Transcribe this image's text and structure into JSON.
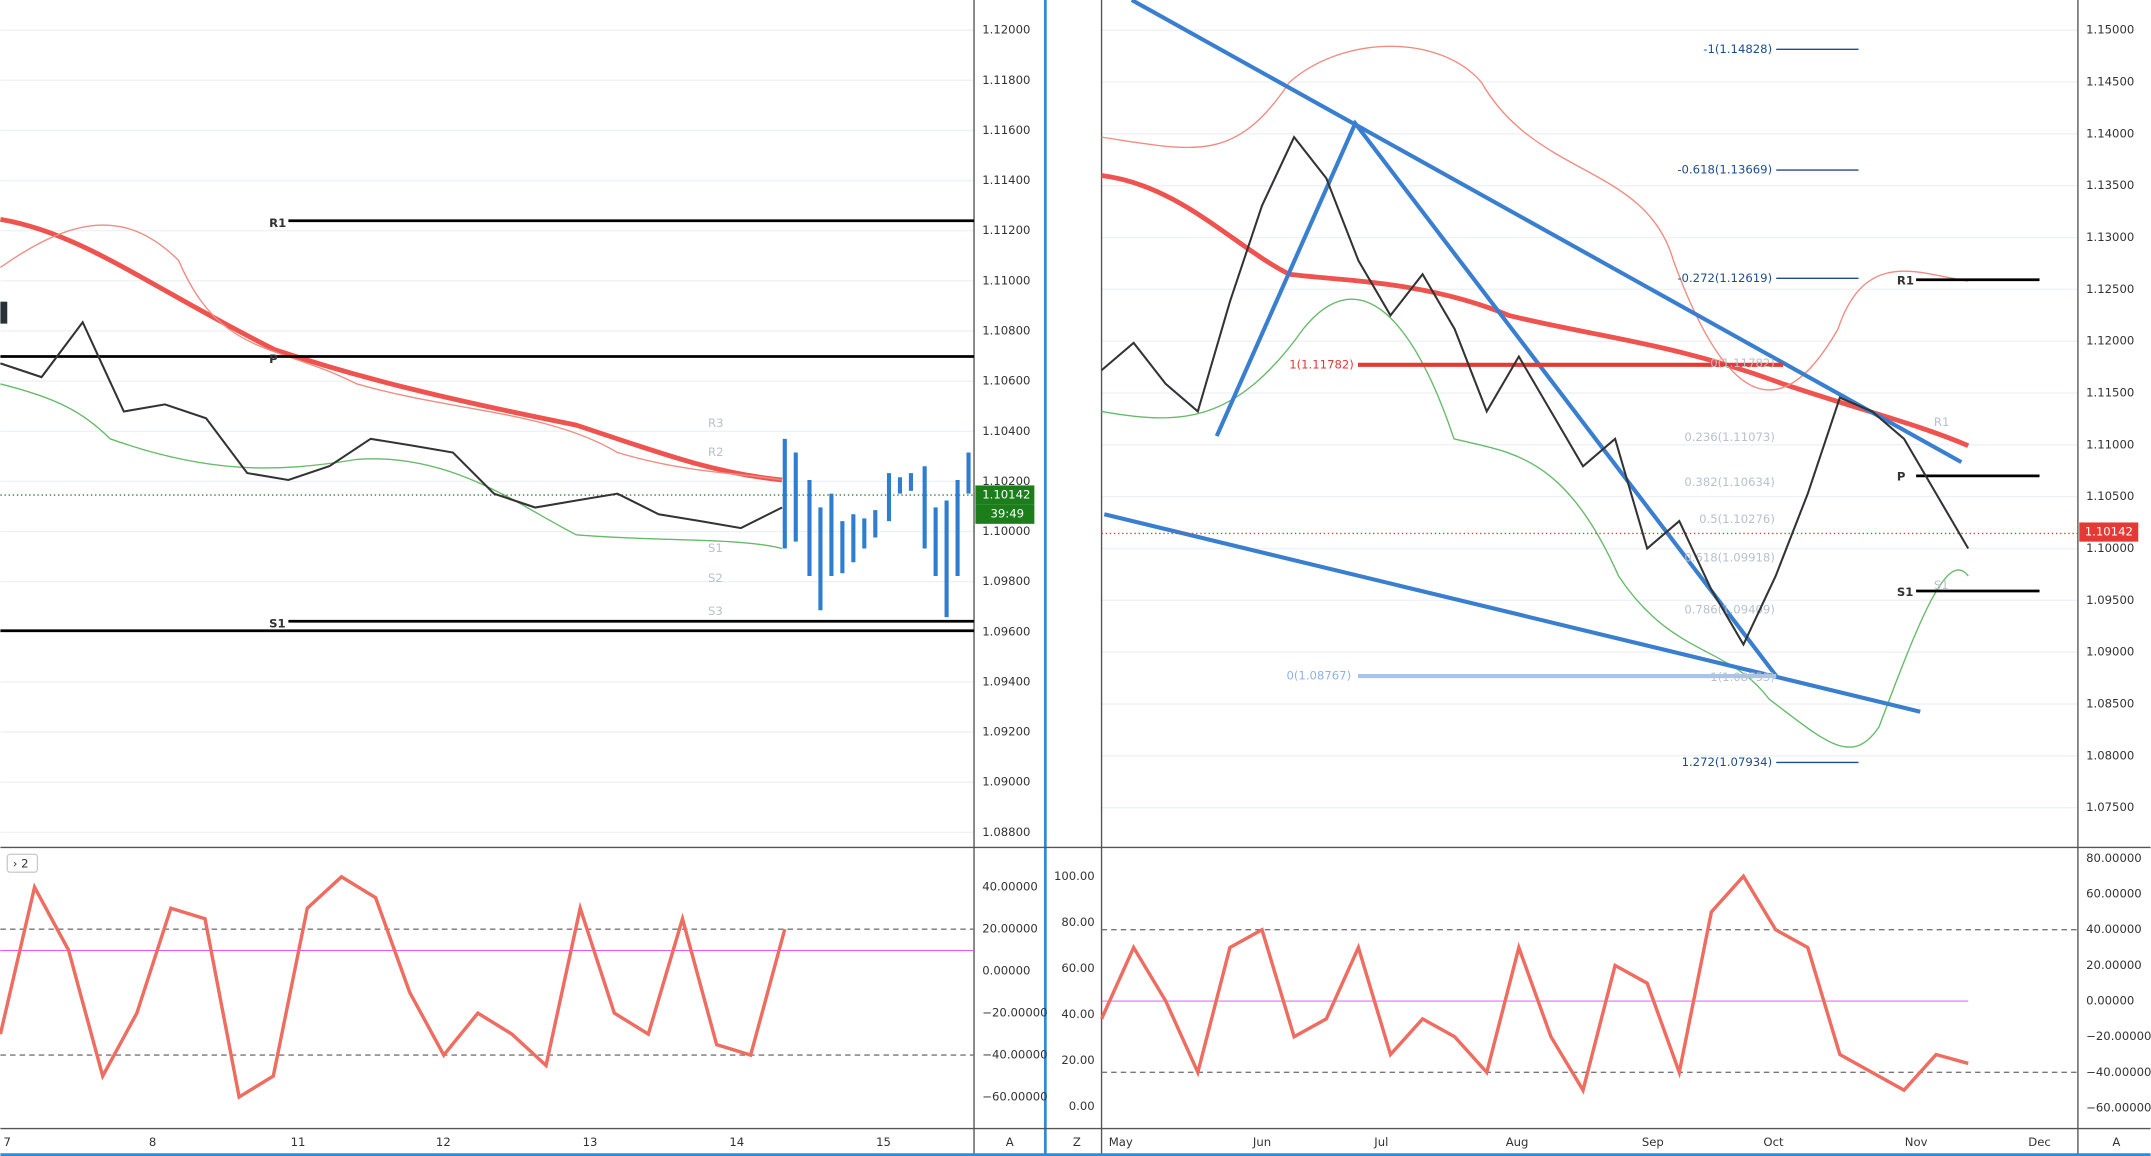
{
  "left_chart": {
    "price_ticks": [
      {
        "value": 1.12,
        "label": "1.12000"
      },
      {
        "value": 1.118,
        "label": "1.11800"
      },
      {
        "value": 1.116,
        "label": "1.11600"
      },
      {
        "value": 1.114,
        "label": "1.11400"
      },
      {
        "value": 1.112,
        "label": "1.11200"
      },
      {
        "value": 1.11,
        "label": "1.11000"
      },
      {
        "value": 1.108,
        "label": "1.10800"
      },
      {
        "value": 1.106,
        "label": "1.10600"
      },
      {
        "value": 1.104,
        "label": "1.10400"
      },
      {
        "value": 1.102,
        "label": "1.10200"
      },
      {
        "value": 1.1,
        "label": "1.10000"
      },
      {
        "value": 1.098,
        "label": "1.09800"
      },
      {
        "value": 1.096,
        "label": "1.09600"
      },
      {
        "value": 1.094,
        "label": "1.09400"
      },
      {
        "value": 1.092,
        "label": "1.09200"
      },
      {
        "value": 1.09,
        "label": "1.09000"
      },
      {
        "value": 1.088,
        "label": "1.08800"
      }
    ],
    "pivot_labels": [
      "R1",
      "P",
      "S1"
    ],
    "faded_pivot_labels": [
      "R3",
      "R2",
      "S1",
      "S2",
      "S3"
    ],
    "last_price": "1.10142",
    "countdown": "39:49",
    "indicator_toggle": "› 2",
    "time_axis": [
      "7",
      "8",
      "11",
      "12",
      "13",
      "14",
      "15",
      "A"
    ],
    "close": [
      1.10671,
      1.10616,
      1.10835,
      1.10479,
      1.10507,
      1.10452,
      1.10233,
      1.10206,
      1.10261,
      1.1037,
      1.10343,
      1.10315,
      1.10151,
      1.10096,
      1.10124,
      1.10151,
      1.10069,
      1.10042,
      1.10014,
      1.10096
    ],
    "osc_ticks": [
      {
        "value": 40,
        "label": "40.00000"
      },
      {
        "value": 20,
        "label": "20.00000"
      },
      {
        "value": 0,
        "label": "0.00000"
      },
      {
        "value": -20,
        "label": "−20.00000"
      },
      {
        "value": -40,
        "label": "−40.00000"
      },
      {
        "value": -60,
        "label": "−60.00000"
      }
    ],
    "osc": [
      -30,
      40,
      10,
      -50,
      -20,
      30,
      25,
      -60,
      -50,
      30,
      45,
      35,
      -10,
      -40,
      -20,
      -30,
      -45,
      30,
      -20,
      -30,
      25,
      -35,
      -40,
      20
    ]
  },
  "right_chart": {
    "price_ticks": [
      {
        "value": 1.15,
        "label": "1.15000"
      },
      {
        "value": 1.145,
        "label": "1.14500"
      },
      {
        "value": 1.14,
        "label": "1.14000"
      },
      {
        "value": 1.135,
        "label": "1.13500"
      },
      {
        "value": 1.13,
        "label": "1.13000"
      },
      {
        "value": 1.125,
        "label": "1.12500"
      },
      {
        "value": 1.12,
        "label": "1.12000"
      },
      {
        "value": 1.115,
        "label": "1.11500"
      },
      {
        "value": 1.11,
        "label": "1.11000"
      },
      {
        "value": 1.105,
        "label": "1.10500"
      },
      {
        "value": 1.1,
        "label": "1.10000"
      },
      {
        "value": 1.095,
        "label": "1.09500"
      },
      {
        "value": 1.09,
        "label": "1.09000"
      },
      {
        "value": 1.085,
        "label": "1.08500"
      },
      {
        "value": 1.08,
        "label": "1.08000"
      },
      {
        "value": 1.075,
        "label": "1.07500"
      }
    ],
    "fib_labels": [
      "-1(1.14828)",
      "-0.618(1.13669)",
      "-0.272(1.12619)",
      "1.272(1.07934)"
    ],
    "faded_fib_labels": [
      "0(1.11782)",
      "0.236(1.11073)",
      "0.382(1.10634)",
      "0.5(1.10276)",
      "0.618(1.09918)",
      "0.786(1.09409)",
      "1(1.08753)"
    ],
    "red_fib_label": "1(1.11782)",
    "blue_fib_label": "0(1.08767)",
    "pivot_labels": [
      "R1",
      "P",
      "S1"
    ],
    "faded_pivot_labels": [
      "R1",
      "S1"
    ],
    "last_price": "1.10142",
    "time_axis": [
      "Z",
      "May",
      "Jun",
      "Jul",
      "Aug",
      "Sep",
      "Oct",
      "Nov",
      "Dec",
      "A"
    ],
    "close": [
      1.1172,
      1.11984,
      1.11587,
      1.11323,
      1.12381,
      1.13307,
      1.13968,
      1.13571,
      1.12778,
      1.12249,
      1.12646,
      1.12116,
      1.11323,
      1.11852,
      1.11323,
      1.10794,
      1.11058,
      1.1,
      1.10265,
      1.09603,
      1.09074,
      1.09735,
      1.10529,
      1.11455,
      1.11323,
      1.11058,
      1.10529,
      1.1
    ],
    "osc_ticks": [
      {
        "value": 80,
        "label": "80.00000"
      },
      {
        "value": 60,
        "label": "60.00000"
      },
      {
        "value": 40,
        "label": "40.00000"
      },
      {
        "value": 20,
        "label": "20.00000"
      },
      {
        "value": 0,
        "label": "0.00000"
      },
      {
        "value": -20,
        "label": "−20.00000"
      },
      {
        "value": -40,
        "label": "−40.00000"
      },
      {
        "value": -60,
        "label": "−60.00000"
      }
    ],
    "osc_left_ticks": [
      "100.00",
      "80.00",
      "60.00",
      "40.00",
      "20.00",
      "0.00"
    ],
    "osc": [
      -10,
      30,
      0,
      -40,
      30,
      40,
      -20,
      -10,
      30,
      -30,
      -10,
      -20,
      -40,
      30,
      -20,
      -50,
      20,
      10,
      -40,
      50,
      70,
      40,
      30,
      -30,
      -40,
      -50,
      -30,
      -35
    ]
  }
}
